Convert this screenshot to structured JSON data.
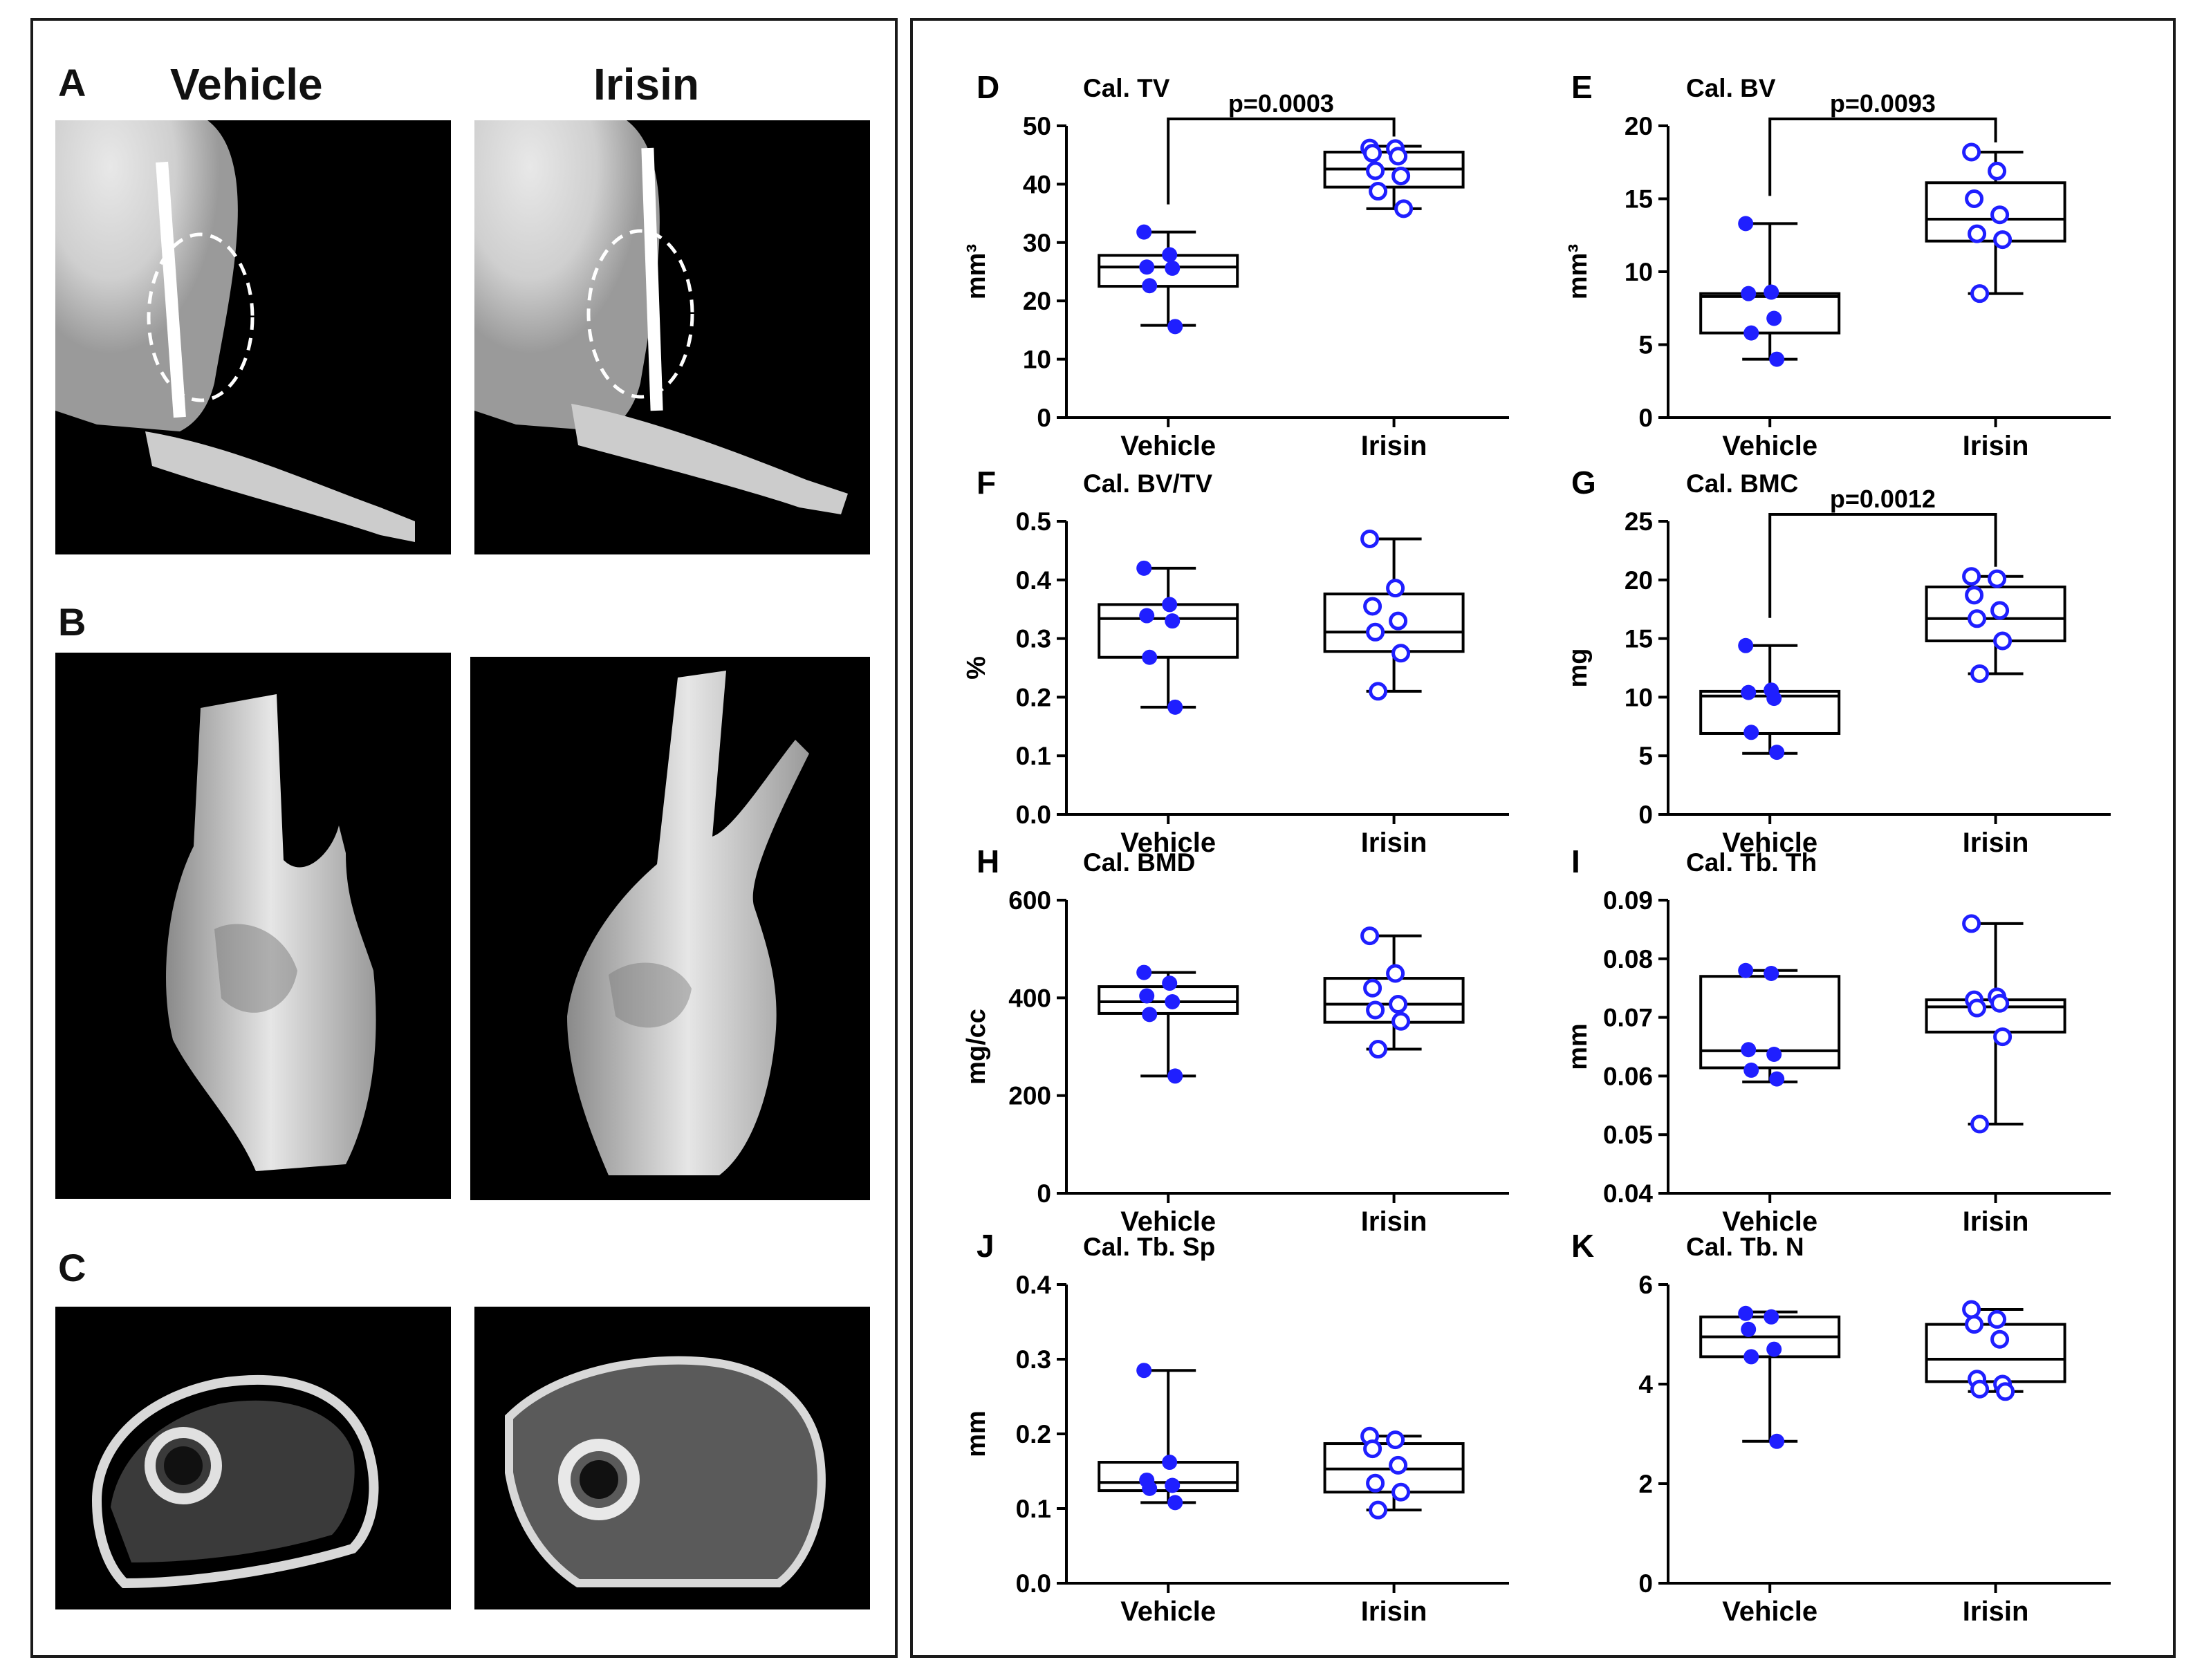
{
  "left": {
    "label_a": "A",
    "label_b": "B",
    "label_c": "C",
    "header_vehicle": "Vehicle",
    "header_irisin": "Irisin"
  },
  "colors": {
    "point": "#1f1fff",
    "box": "#000000",
    "background": "#000000"
  },
  "chart_data": [
    {
      "letter": "D",
      "type": "box",
      "title": "Cal. TV",
      "ylabel": "mm³",
      "ylim": [
        0,
        50
      ],
      "ticks": [
        0,
        10,
        20,
        30,
        40,
        50
      ],
      "decimals": 0,
      "categories": [
        "Vehicle",
        "Irisin"
      ],
      "pvalue": "p=0.0003",
      "boxes": [
        {
          "min": 15.8,
          "q1": 22.5,
          "median": 25.8,
          "q3": 27.8,
          "max": 31.8
        },
        {
          "min": 35.8,
          "q1": 39.5,
          "median": 42.6,
          "q3": 45.5,
          "max": 46.5
        }
      ],
      "points": [
        [
          31.8,
          27.9,
          25.8,
          25.6,
          22.6,
          15.6
        ],
        [
          46.2,
          46.1,
          45.3,
          44.8,
          42.3,
          41.4,
          38.8,
          35.8
        ]
      ]
    },
    {
      "letter": "E",
      "type": "box",
      "title": "Cal. BV",
      "ylabel": "mm³",
      "ylim": [
        0,
        20
      ],
      "ticks": [
        0,
        5,
        10,
        15,
        20
      ],
      "decimals": 0,
      "categories": [
        "Vehicle",
        "Irisin"
      ],
      "pvalue": "p=0.0093",
      "boxes": [
        {
          "min": 4.0,
          "q1": 5.8,
          "median": 8.3,
          "q3": 8.5,
          "max": 13.3
        },
        {
          "min": 8.5,
          "q1": 12.1,
          "median": 13.6,
          "q3": 16.1,
          "max": 18.2
        }
      ],
      "points": [
        [
          13.3,
          8.6,
          8.5,
          6.8,
          5.8,
          4.0
        ],
        [
          18.2,
          16.9,
          15.0,
          13.9,
          12.6,
          12.2,
          8.5
        ]
      ]
    },
    {
      "letter": "F",
      "type": "box",
      "title": "Cal. BV/TV",
      "ylabel": "%",
      "ylim": [
        0,
        0.5
      ],
      "ticks": [
        0,
        0.1,
        0.2,
        0.3,
        0.4,
        0.5
      ],
      "decimals": 1,
      "categories": [
        "Vehicle",
        "Irisin"
      ],
      "pvalue": "",
      "boxes": [
        {
          "min": 0.183,
          "q1": 0.268,
          "median": 0.334,
          "q3": 0.358,
          "max": 0.42
        },
        {
          "min": 0.21,
          "q1": 0.278,
          "median": 0.311,
          "q3": 0.376,
          "max": 0.47
        }
      ],
      "points": [
        [
          0.42,
          0.358,
          0.339,
          0.33,
          0.268,
          0.183
        ],
        [
          0.47,
          0.386,
          0.355,
          0.33,
          0.311,
          0.275,
          0.21
        ]
      ]
    },
    {
      "letter": "G",
      "type": "box",
      "title": "Cal. BMC",
      "ylabel": "mg",
      "ylim": [
        0,
        25
      ],
      "ticks": [
        0,
        5,
        10,
        15,
        20,
        25
      ],
      "decimals": 0,
      "categories": [
        "Vehicle",
        "Irisin"
      ],
      "pvalue": "p=0.0012",
      "boxes": [
        {
          "min": 5.2,
          "q1": 6.9,
          "median": 10.1,
          "q3": 10.5,
          "max": 14.4
        },
        {
          "min": 12.0,
          "q1": 14.8,
          "median": 16.7,
          "q3": 19.4,
          "max": 20.3
        }
      ],
      "points": [
        [
          14.4,
          10.6,
          10.4,
          9.9,
          7.0,
          5.3
        ],
        [
          20.3,
          20.1,
          18.7,
          17.4,
          16.7,
          14.8,
          12.0
        ]
      ]
    },
    {
      "letter": "H",
      "type": "box",
      "title": "Cal. BMD",
      "ylabel": "mg/cc",
      "ylim": [
        0,
        600
      ],
      "ticks": [
        0,
        200,
        400,
        600
      ],
      "decimals": 0,
      "categories": [
        "Vehicle",
        "Irisin"
      ],
      "pvalue": "",
      "boxes": [
        {
          "min": 240,
          "q1": 368,
          "median": 392,
          "q3": 423,
          "max": 452
        },
        {
          "min": 295,
          "q1": 350,
          "median": 387,
          "q3": 440,
          "max": 527
        }
      ],
      "points": [
        [
          452,
          430,
          404,
          392,
          366,
          240
        ],
        [
          527,
          450,
          420,
          387,
          375,
          352,
          295
        ]
      ]
    },
    {
      "letter": "I",
      "type": "box",
      "title": "Cal. Tb. Th",
      "ylabel": "mm",
      "ylim": [
        0.04,
        0.09
      ],
      "ticks": [
        0.04,
        0.05,
        0.06,
        0.07,
        0.08,
        0.09
      ],
      "decimals": 2,
      "categories": [
        "Vehicle",
        "Irisin"
      ],
      "pvalue": "",
      "boxes": [
        {
          "min": 0.059,
          "q1": 0.0614,
          "median": 0.0643,
          "q3": 0.077,
          "max": 0.078
        },
        {
          "min": 0.0518,
          "q1": 0.0675,
          "median": 0.0718,
          "q3": 0.073,
          "max": 0.086
        }
      ],
      "points": [
        [
          0.078,
          0.0775,
          0.0645,
          0.0637,
          0.061,
          0.0595
        ],
        [
          0.086,
          0.0735,
          0.073,
          0.0724,
          0.0716,
          0.0667,
          0.0518
        ]
      ]
    },
    {
      "letter": "J",
      "type": "box",
      "title": "Cal. Tb. Sp",
      "ylabel": "mm",
      "ylim": [
        0,
        0.4
      ],
      "ticks": [
        0,
        0.1,
        0.2,
        0.3,
        0.4
      ],
      "decimals": 1,
      "categories": [
        "Vehicle",
        "Irisin"
      ],
      "pvalue": "",
      "boxes": [
        {
          "min": 0.108,
          "q1": 0.124,
          "median": 0.135,
          "q3": 0.162,
          "max": 0.285
        },
        {
          "min": 0.098,
          "q1": 0.122,
          "median": 0.153,
          "q3": 0.187,
          "max": 0.197
        }
      ],
      "points": [
        [
          0.285,
          0.162,
          0.138,
          0.131,
          0.127,
          0.108
        ],
        [
          0.197,
          0.192,
          0.18,
          0.158,
          0.134,
          0.122,
          0.098
        ]
      ]
    },
    {
      "letter": "K",
      "type": "box",
      "title": "Cal. Tb. N",
      "ylabel": "",
      "ylim": [
        0,
        6
      ],
      "ticks": [
        0,
        2,
        4,
        6
      ],
      "decimals": 0,
      "categories": [
        "Vehicle",
        "Irisin"
      ],
      "pvalue": "",
      "boxes": [
        {
          "min": 2.85,
          "q1": 4.55,
          "median": 4.95,
          "q3": 5.35,
          "max": 5.45
        },
        {
          "min": 3.85,
          "q1": 4.05,
          "median": 4.5,
          "q3": 5.2,
          "max": 5.5
        }
      ],
      "points": [
        [
          5.42,
          5.35,
          5.1,
          4.7,
          4.55,
          2.85
        ],
        [
          5.5,
          5.3,
          5.2,
          4.9,
          4.1,
          4.0,
          3.9,
          3.85
        ]
      ]
    }
  ]
}
